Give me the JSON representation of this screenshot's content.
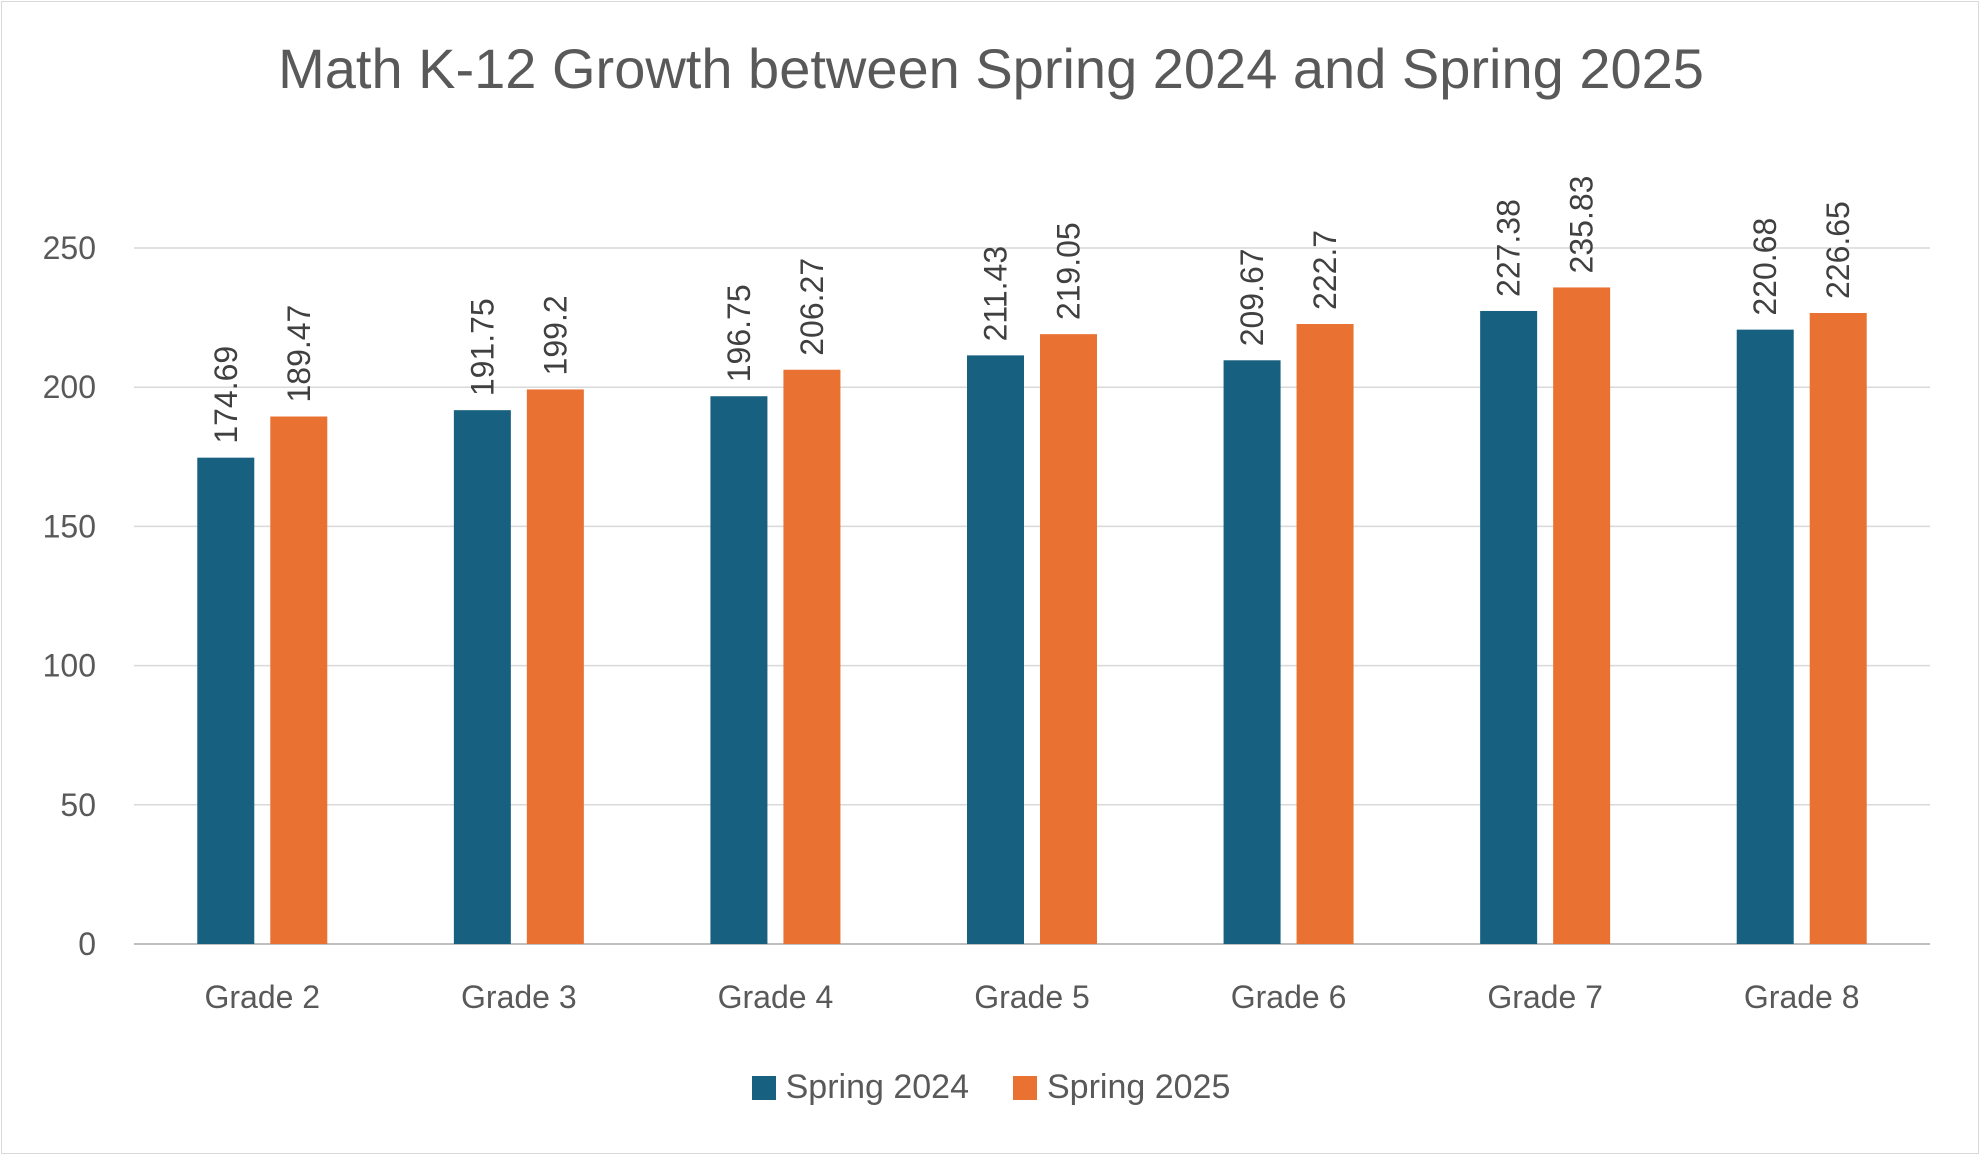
{
  "chart_data": {
    "type": "bar",
    "title": "Math K-12 Growth between Spring 2024 and Spring 2025",
    "xlabel": "",
    "ylabel": "",
    "categories": [
      "Grade 2",
      "Grade 3",
      "Grade 4",
      "Grade 5",
      "Grade 6",
      "Grade 7",
      "Grade 8"
    ],
    "series": [
      {
        "name": "Spring 2024",
        "color": "#17607F",
        "values": [
          174.69,
          191.75,
          196.75,
          211.43,
          209.67,
          227.38,
          220.68
        ],
        "labels": [
          "174.69",
          "191.75",
          "196.75",
          "211.43",
          "209.67",
          "227.38",
          "220.68"
        ]
      },
      {
        "name": "Spring 2025",
        "color": "#E97132",
        "values": [
          189.47,
          199.2,
          206.27,
          219.05,
          222.7,
          235.83,
          226.65
        ],
        "labels": [
          "189.47",
          "199.2",
          "206.27",
          "219.05",
          "222.7",
          "235.83",
          "226.65"
        ]
      }
    ],
    "ylim": [
      0,
      250
    ],
    "yticks": [
      "0",
      "50",
      "100",
      "150",
      "200",
      "250"
    ],
    "grid": true,
    "legend_position": "bottom"
  }
}
